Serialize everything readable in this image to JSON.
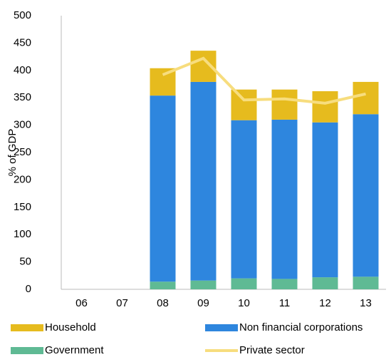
{
  "chart_data": {
    "type": "bar",
    "stacked": true,
    "y_label": "% of GDP",
    "categories": [
      "06",
      "07",
      "08",
      "09",
      "10",
      "11",
      "12",
      "13"
    ],
    "series": [
      {
        "name": "Government",
        "type": "bar",
        "color": "#5fba94",
        "values": [
          null,
          null,
          14,
          16,
          20,
          19,
          22,
          23
        ]
      },
      {
        "name": "Non financial corporations",
        "type": "bar",
        "color": "#2e86de",
        "values": [
          null,
          null,
          340,
          363,
          289,
          291,
          283,
          297
        ]
      },
      {
        "name": "Household",
        "type": "bar",
        "color": "#e6bb1e",
        "values": [
          null,
          null,
          50,
          57,
          56,
          55,
          57,
          59
        ]
      },
      {
        "name": "Private sector",
        "type": "line",
        "color": "#f7dd7e",
        "values": [
          null,
          null,
          392,
          422,
          346,
          348,
          340,
          357
        ]
      }
    ],
    "ylim": [
      0,
      500
    ],
    "yticks": [
      0,
      50,
      100,
      150,
      200,
      250,
      300,
      350,
      400,
      450,
      500
    ],
    "grid": false,
    "legend": "bottom"
  }
}
